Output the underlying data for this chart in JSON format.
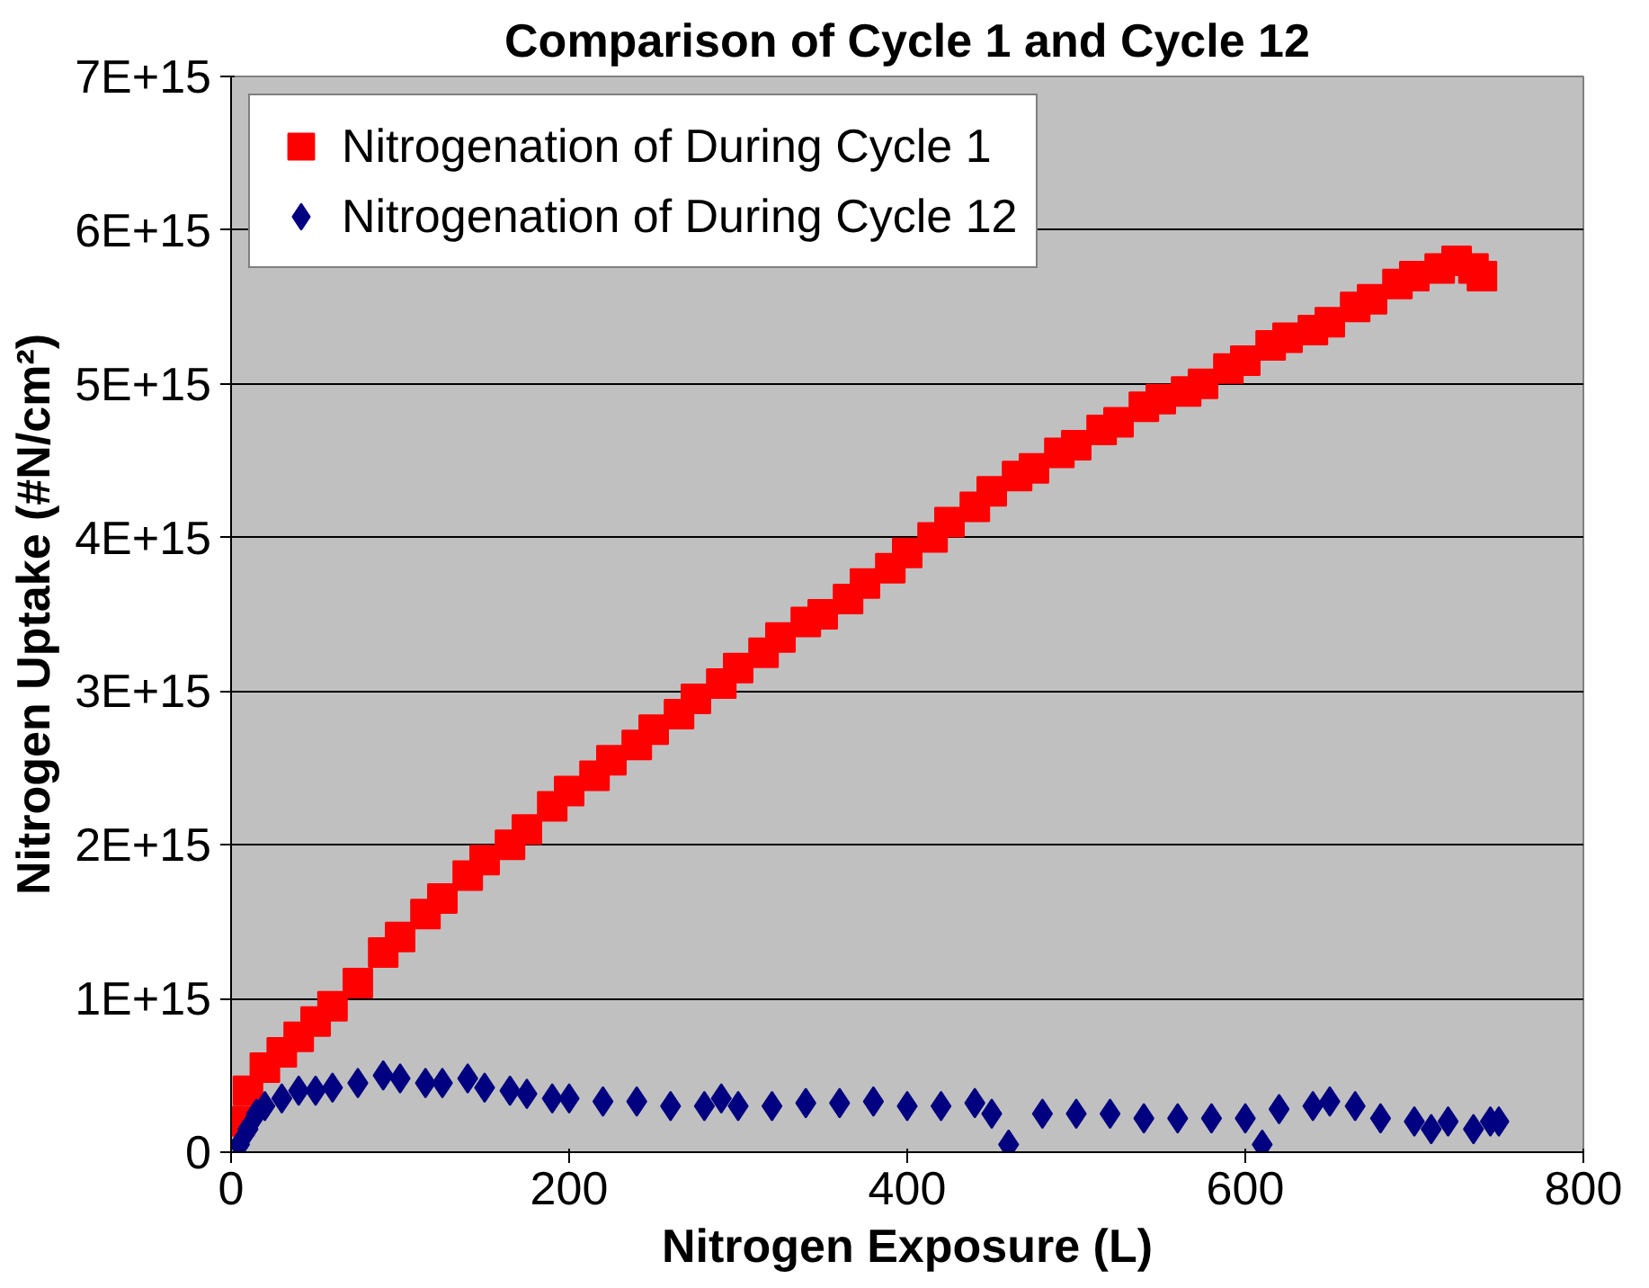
{
  "chart_data": {
    "type": "scatter",
    "title": "Comparison of Cycle 1 and Cycle 12",
    "xlabel": "Nitrogen Exposure (L)",
    "ylabel": "Nitrogen Uptake (#N/cm²)",
    "xlim": [
      0,
      800
    ],
    "xticks": [
      0,
      200,
      400,
      600,
      800
    ],
    "ylim": [
      0,
      7000000000000000.0
    ],
    "yticks": [
      0,
      {
        "value": 1000000000000000.0,
        "label": "1E+15"
      },
      {
        "value": 2000000000000000.0,
        "label": "2E+15"
      },
      {
        "value": 3000000000000000.0,
        "label": "3E+15"
      },
      {
        "value": 4000000000000000.0,
        "label": "4E+15"
      },
      {
        "value": 5000000000000000.0,
        "label": "5E+15"
      },
      {
        "value": 6000000000000000.0,
        "label": "6E+15"
      },
      {
        "value": 7000000000000000.0,
        "label": "7E+15"
      }
    ],
    "grid": "y",
    "legend": "top left",
    "series": [
      {
        "name": "Nitrogenation of During Cycle 1",
        "color": "#ff0000",
        "marker": "square",
        "x": [
          5,
          10,
          20,
          30,
          40,
          50,
          60,
          75,
          90,
          100,
          115,
          125,
          140,
          150,
          165,
          175,
          190,
          200,
          215,
          225,
          240,
          250,
          265,
          275,
          290,
          300,
          315,
          325,
          340,
          350,
          365,
          375,
          390,
          400,
          415,
          425,
          440,
          450,
          465,
          475,
          490,
          500,
          515,
          525,
          540,
          550,
          565,
          575,
          590,
          600,
          615,
          625,
          640,
          650,
          665,
          675,
          690,
          700,
          715,
          725,
          735,
          740
        ],
        "values": [
          200000000000000.0,
          400000000000000.0,
          550000000000000.0,
          650000000000000.0,
          750000000000000.0,
          850000000000000.0,
          950000000000000.0,
          1100000000000000.0,
          1300000000000000.0,
          1400000000000000.0,
          1550000000000000.0,
          1650000000000000.0,
          1800000000000000.0,
          1900000000000000.0,
          2000000000000000.0,
          2100000000000000.0,
          2250000000000000.0,
          2350000000000000.0,
          2450000000000000.0,
          2550000000000000.0,
          2650000000000000.0,
          2750000000000000.0,
          2850000000000000.0,
          2950000000000000.0,
          3050000000000000.0,
          3150000000000000.0,
          3250000000000000.0,
          3350000000000000.0,
          3450000000000000.0,
          3500000000000000.0,
          3600000000000000.0,
          3700000000000000.0,
          3800000000000000.0,
          3900000000000000.0,
          4000000000000000.0,
          4100000000000000.0,
          4200000000000000.0,
          4300000000000000.0,
          4400000000000000.0,
          4450000000000000.0,
          4550000000000000.0,
          4600000000000000.0,
          4700000000000000.0,
          4750000000000000.0,
          4850000000000000.0,
          4900000000000000.0,
          4950000000000000.0,
          5000000000000000.0,
          5100000000000000.0,
          5150000000000000.0,
          5250000000000000.0,
          5300000000000000.0,
          5350000000000000.0,
          5400000000000000.0,
          5500000000000000.0,
          5550000000000000.0,
          5650000000000000.0,
          5700000000000000.0,
          5750000000000000.0,
          5800000000000000.0,
          5750000000000000.0,
          5700000000000000.0
        ]
      },
      {
        "name": "Nitrogenation of During Cycle 12",
        "color": "#000080",
        "marker": "diamond",
        "x": [
          5,
          10,
          15,
          20,
          30,
          40,
          50,
          60,
          75,
          90,
          100,
          115,
          125,
          140,
          150,
          165,
          175,
          190,
          200,
          220,
          240,
          260,
          280,
          290,
          300,
          320,
          340,
          360,
          380,
          400,
          420,
          440,
          450,
          460,
          480,
          500,
          520,
          540,
          560,
          580,
          600,
          610,
          620,
          640,
          650,
          665,
          680,
          700,
          710,
          720,
          735,
          745,
          750
        ],
        "values": [
          50000000000000.0,
          150000000000000.0,
          250000000000000.0,
          300000000000000.0,
          350000000000000.0,
          400000000000000.0,
          400000000000000.0,
          420000000000000.0,
          450000000000000.0,
          500000000000000.0,
          480000000000000.0,
          450000000000000.0,
          450000000000000.0,
          480000000000000.0,
          420000000000000.0,
          400000000000000.0,
          380000000000000.0,
          350000000000000.0,
          350000000000000.0,
          330000000000000.0,
          330000000000000.0,
          300000000000000.0,
          300000000000000.0,
          350000000000000.0,
          300000000000000.0,
          300000000000000.0,
          320000000000000.0,
          320000000000000.0,
          330000000000000.0,
          300000000000000.0,
          300000000000000.0,
          320000000000000.0,
          250000000000000.0,
          50000000000000.0,
          250000000000000.0,
          250000000000000.0,
          250000000000000.0,
          220000000000000.0,
          220000000000000.0,
          220000000000000.0,
          220000000000000.0,
          50000000000000.0,
          280000000000000.0,
          300000000000000.0,
          330000000000000.0,
          300000000000000.0,
          220000000000000.0,
          200000000000000.0,
          150000000000000.0,
          200000000000000.0,
          150000000000000.0,
          200000000000000.0,
          200000000000000.0
        ]
      }
    ]
  }
}
